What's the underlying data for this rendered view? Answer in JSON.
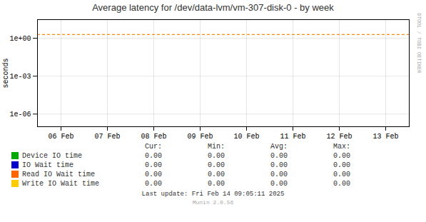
{
  "chart_data": {
    "type": "line",
    "title": "Average latency for /dev/data-lvm/vm-307-disk-0 - by week",
    "y_label": "seconds",
    "categories": [
      "06 Feb",
      "07 Feb",
      "08 Feb",
      "09 Feb",
      "10 Feb",
      "11 Feb",
      "12 Feb",
      "13 Feb"
    ],
    "series": [
      {
        "name": "Device IO time",
        "color": "#00aa00",
        "values": [
          null,
          null,
          null,
          null,
          null,
          null,
          null,
          null
        ]
      },
      {
        "name": "IO Wait time",
        "color": "#0000cc",
        "values": [
          null,
          null,
          null,
          null,
          null,
          null,
          null,
          null
        ]
      },
      {
        "name": "Read IO Wait time",
        "color": "#ff6600",
        "values": [
          null,
          null,
          null,
          null,
          null,
          null,
          null,
          null
        ]
      },
      {
        "name": "Write IO Wait time",
        "color": "#ffcc00",
        "values": [
          null,
          null,
          null,
          null,
          null,
          null,
          null,
          null
        ]
      }
    ],
    "log": "y",
    "ylim": [
      1e-07,
      30
    ],
    "yticks": [
      {
        "value": 1e-06,
        "label": "1e-06"
      },
      {
        "value": 0.001,
        "label": "1e-03"
      },
      {
        "value": 1,
        "label": "1e+00"
      }
    ],
    "grid": true,
    "legend": "bottom",
    "reference_line": {
      "value": 2.0,
      "color": "#ff8800",
      "line_style": "dashed"
    },
    "table": {
      "headers": [
        "Cur:",
        "Min:",
        "Avg:",
        "Max:"
      ],
      "rows": [
        [
          "0.00",
          "0.00",
          "0.00",
          "0.00"
        ],
        [
          "0.00",
          "0.00",
          "0.00",
          "0.00"
        ],
        [
          "0.00",
          "0.00",
          "0.00",
          "0.00"
        ],
        [
          "0.00",
          "0.00",
          "0.00",
          "0.00"
        ]
      ]
    },
    "annotations": [
      "Last update: Fri Feb 14 09:05:11 2025",
      "Munin 2.0.56",
      "RRDTOOL / TOBI OETIKER"
    ]
  }
}
